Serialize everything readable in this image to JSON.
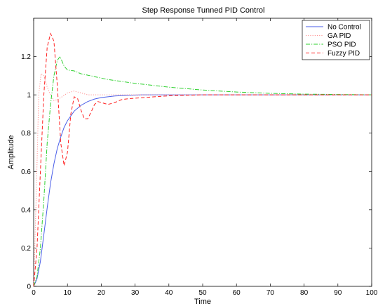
{
  "chart_data": {
    "type": "line",
    "title": "Step Response Tunned PID Control",
    "xlabel": "Time",
    "ylabel": "Amplitude",
    "xlim": [
      0,
      100
    ],
    "ylim": [
      0,
      1.4
    ],
    "xticks": [
      0,
      10,
      20,
      30,
      40,
      50,
      60,
      70,
      80,
      90,
      100
    ],
    "yticks": [
      0,
      0.2,
      0.4,
      0.6,
      0.8,
      1,
      1.2
    ],
    "ytick_labels": [
      "0",
      "0.2",
      "0.4",
      "0.6",
      "0.8",
      "1",
      "1.2"
    ],
    "grid": false,
    "legend_position": "top-right",
    "series": [
      {
        "name": "No Control",
        "color": "#4a5ee8",
        "dash": "solid",
        "points": [
          [
            0,
            0
          ],
          [
            1,
            0.04
          ],
          [
            2,
            0.13
          ],
          [
            3,
            0.27
          ],
          [
            4,
            0.41
          ],
          [
            5,
            0.54
          ],
          [
            6,
            0.64
          ],
          [
            7,
            0.72
          ],
          [
            8,
            0.78
          ],
          [
            9,
            0.83
          ],
          [
            10,
            0.865
          ],
          [
            12,
            0.915
          ],
          [
            14,
            0.945
          ],
          [
            16,
            0.965
          ],
          [
            18,
            0.978
          ],
          [
            20,
            0.986
          ],
          [
            24,
            0.994
          ],
          [
            28,
            0.998
          ],
          [
            32,
            1.0
          ],
          [
            40,
            1.0
          ],
          [
            100,
            1.0
          ]
        ]
      },
      {
        "name": "GA PID",
        "color": "#ff8f8f",
        "dash": "dotted",
        "points": [
          [
            0,
            0
          ],
          [
            0.8,
            0.5
          ],
          [
            1.5,
            1.0
          ],
          [
            2.2,
            1.11
          ],
          [
            3,
            1.1
          ],
          [
            4,
            1.04
          ],
          [
            5,
            1.0
          ],
          [
            6,
            0.97
          ],
          [
            7,
            0.975
          ],
          [
            8,
            0.985
          ],
          [
            10,
            1.01
          ],
          [
            12,
            1.02
          ],
          [
            14,
            1.01
          ],
          [
            16,
            1.0
          ],
          [
            20,
            1.0
          ],
          [
            100,
            1.0
          ]
        ]
      },
      {
        "name": "PSO PID",
        "color": "#2ed02e",
        "dash": "dashdot",
        "points": [
          [
            0,
            0
          ],
          [
            1,
            0.05
          ],
          [
            2,
            0.2
          ],
          [
            3,
            0.45
          ],
          [
            4,
            0.75
          ],
          [
            5,
            0.95
          ],
          [
            6,
            1.1
          ],
          [
            7,
            1.18
          ],
          [
            7.8,
            1.2
          ],
          [
            9,
            1.15
          ],
          [
            10,
            1.13
          ],
          [
            12,
            1.125
          ],
          [
            14,
            1.11
          ],
          [
            18,
            1.095
          ],
          [
            22,
            1.08
          ],
          [
            30,
            1.06
          ],
          [
            40,
            1.04
          ],
          [
            50,
            1.025
          ],
          [
            60,
            1.015
          ],
          [
            70,
            1.008
          ],
          [
            80,
            1.004
          ],
          [
            90,
            1.002
          ],
          [
            100,
            1.0
          ]
        ]
      },
      {
        "name": "Fuzzy PID",
        "color": "#ff2020",
        "dash": "dashed",
        "points": [
          [
            0,
            0
          ],
          [
            1,
            0.2
          ],
          [
            2,
            0.6
          ],
          [
            3,
            1.0
          ],
          [
            4,
            1.25
          ],
          [
            5,
            1.32
          ],
          [
            6,
            1.28
          ],
          [
            7,
            1.05
          ],
          [
            8,
            0.75
          ],
          [
            9,
            0.63
          ],
          [
            10,
            0.7
          ],
          [
            11,
            0.9
          ],
          [
            12,
            0.99
          ],
          [
            13,
            0.98
          ],
          [
            14,
            0.92
          ],
          [
            15,
            0.875
          ],
          [
            16,
            0.875
          ],
          [
            17,
            0.91
          ],
          [
            18,
            0.95
          ],
          [
            19,
            0.965
          ],
          [
            20,
            0.96
          ],
          [
            22,
            0.95
          ],
          [
            24,
            0.96
          ],
          [
            26,
            0.975
          ],
          [
            28,
            0.98
          ],
          [
            32,
            0.985
          ],
          [
            40,
            0.995
          ],
          [
            50,
            1.0
          ],
          [
            100,
            1.0
          ]
        ]
      }
    ]
  }
}
